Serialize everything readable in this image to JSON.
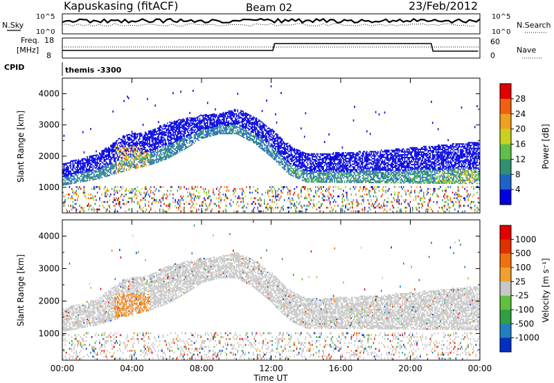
{
  "header": {
    "station": "Kapuskasing (fitACF)",
    "beam": "Beam 02",
    "date": "23/Feb/2012"
  },
  "panels_top": {
    "nsky_label": "N.Sky",
    "nsky_ticks": [
      "10^5",
      "10^0"
    ],
    "nsearch_label": "N.Search",
    "nsearch_ticks": [
      "10^5",
      "10^0"
    ],
    "freq_label_1": "Freq.",
    "freq_label_2": "[MHz]",
    "freq_ticks": [
      "18",
      "8"
    ],
    "nave_label": "Nave",
    "nave_ticks": [
      "60",
      "0"
    ],
    "cpid_label": "CPID",
    "cpid_value": "themis -3300"
  },
  "chart_data": [
    {
      "type": "heatmap",
      "name": "power",
      "ylabel": "Slant Range [km]",
      "ylim": [
        180,
        4500
      ],
      "yticks": [
        1000,
        2000,
        3000,
        4000
      ],
      "colorbar_label": "Power [dB]",
      "colorbar_ticks": [
        "28",
        "24",
        "20",
        "16",
        "12",
        "8",
        "4"
      ],
      "colors": [
        "#0000e0",
        "#1e64c8",
        "#2f8f6e",
        "#5fbf4a",
        "#c8d21e",
        "#f0a020",
        "#f06010",
        "#e00000"
      ],
      "band_lower_km": [
        [
          0,
          1150
        ],
        [
          2,
          1350
        ],
        [
          3.5,
          1600
        ],
        [
          5,
          1800
        ],
        [
          6,
          2000
        ],
        [
          7,
          2300
        ],
        [
          8,
          2650
        ],
        [
          9,
          2800
        ],
        [
          10,
          2800
        ],
        [
          11,
          2500
        ],
        [
          12,
          2050
        ],
        [
          13,
          1500
        ],
        [
          14,
          1250
        ],
        [
          24,
          1200
        ]
      ],
      "band_upper_km": [
        [
          0,
          1600
        ],
        [
          2,
          1900
        ],
        [
          3.5,
          2500
        ],
        [
          5,
          2650
        ],
        [
          6,
          2900
        ],
        [
          7,
          3050
        ],
        [
          8,
          3150
        ],
        [
          9,
          3200
        ],
        [
          10,
          3350
        ],
        [
          11,
          3100
        ],
        [
          12,
          2700
        ],
        [
          13,
          2200
        ],
        [
          14,
          1900
        ],
        [
          18,
          2000
        ],
        [
          24,
          2300
        ]
      ]
    },
    {
      "type": "heatmap",
      "name": "velocity",
      "ylabel": "Slant Range [km]",
      "ylim": [
        180,
        4500
      ],
      "yticks": [
        1000,
        2000,
        3000,
        4000
      ],
      "xlabel": "Time UT",
      "xticks": [
        "00:00",
        "04:00",
        "08:00",
        "12:00",
        "16:00",
        "20:00",
        "00:00"
      ],
      "colorbar_label": "Velocity [m s⁻¹]",
      "colorbar_ticks": [
        "1000",
        "500",
        "100",
        "25",
        "-25",
        "-100",
        "-500",
        "-1000"
      ],
      "colors": [
        "#0030c0",
        "#2080c0",
        "#30a040",
        "#60c040",
        "#c8c8c8",
        "#f0a030",
        "#f07010",
        "#e03000",
        "#e00000"
      ]
    }
  ],
  "x_hours": [
    0,
    4,
    8,
    12,
    16,
    20,
    24
  ]
}
